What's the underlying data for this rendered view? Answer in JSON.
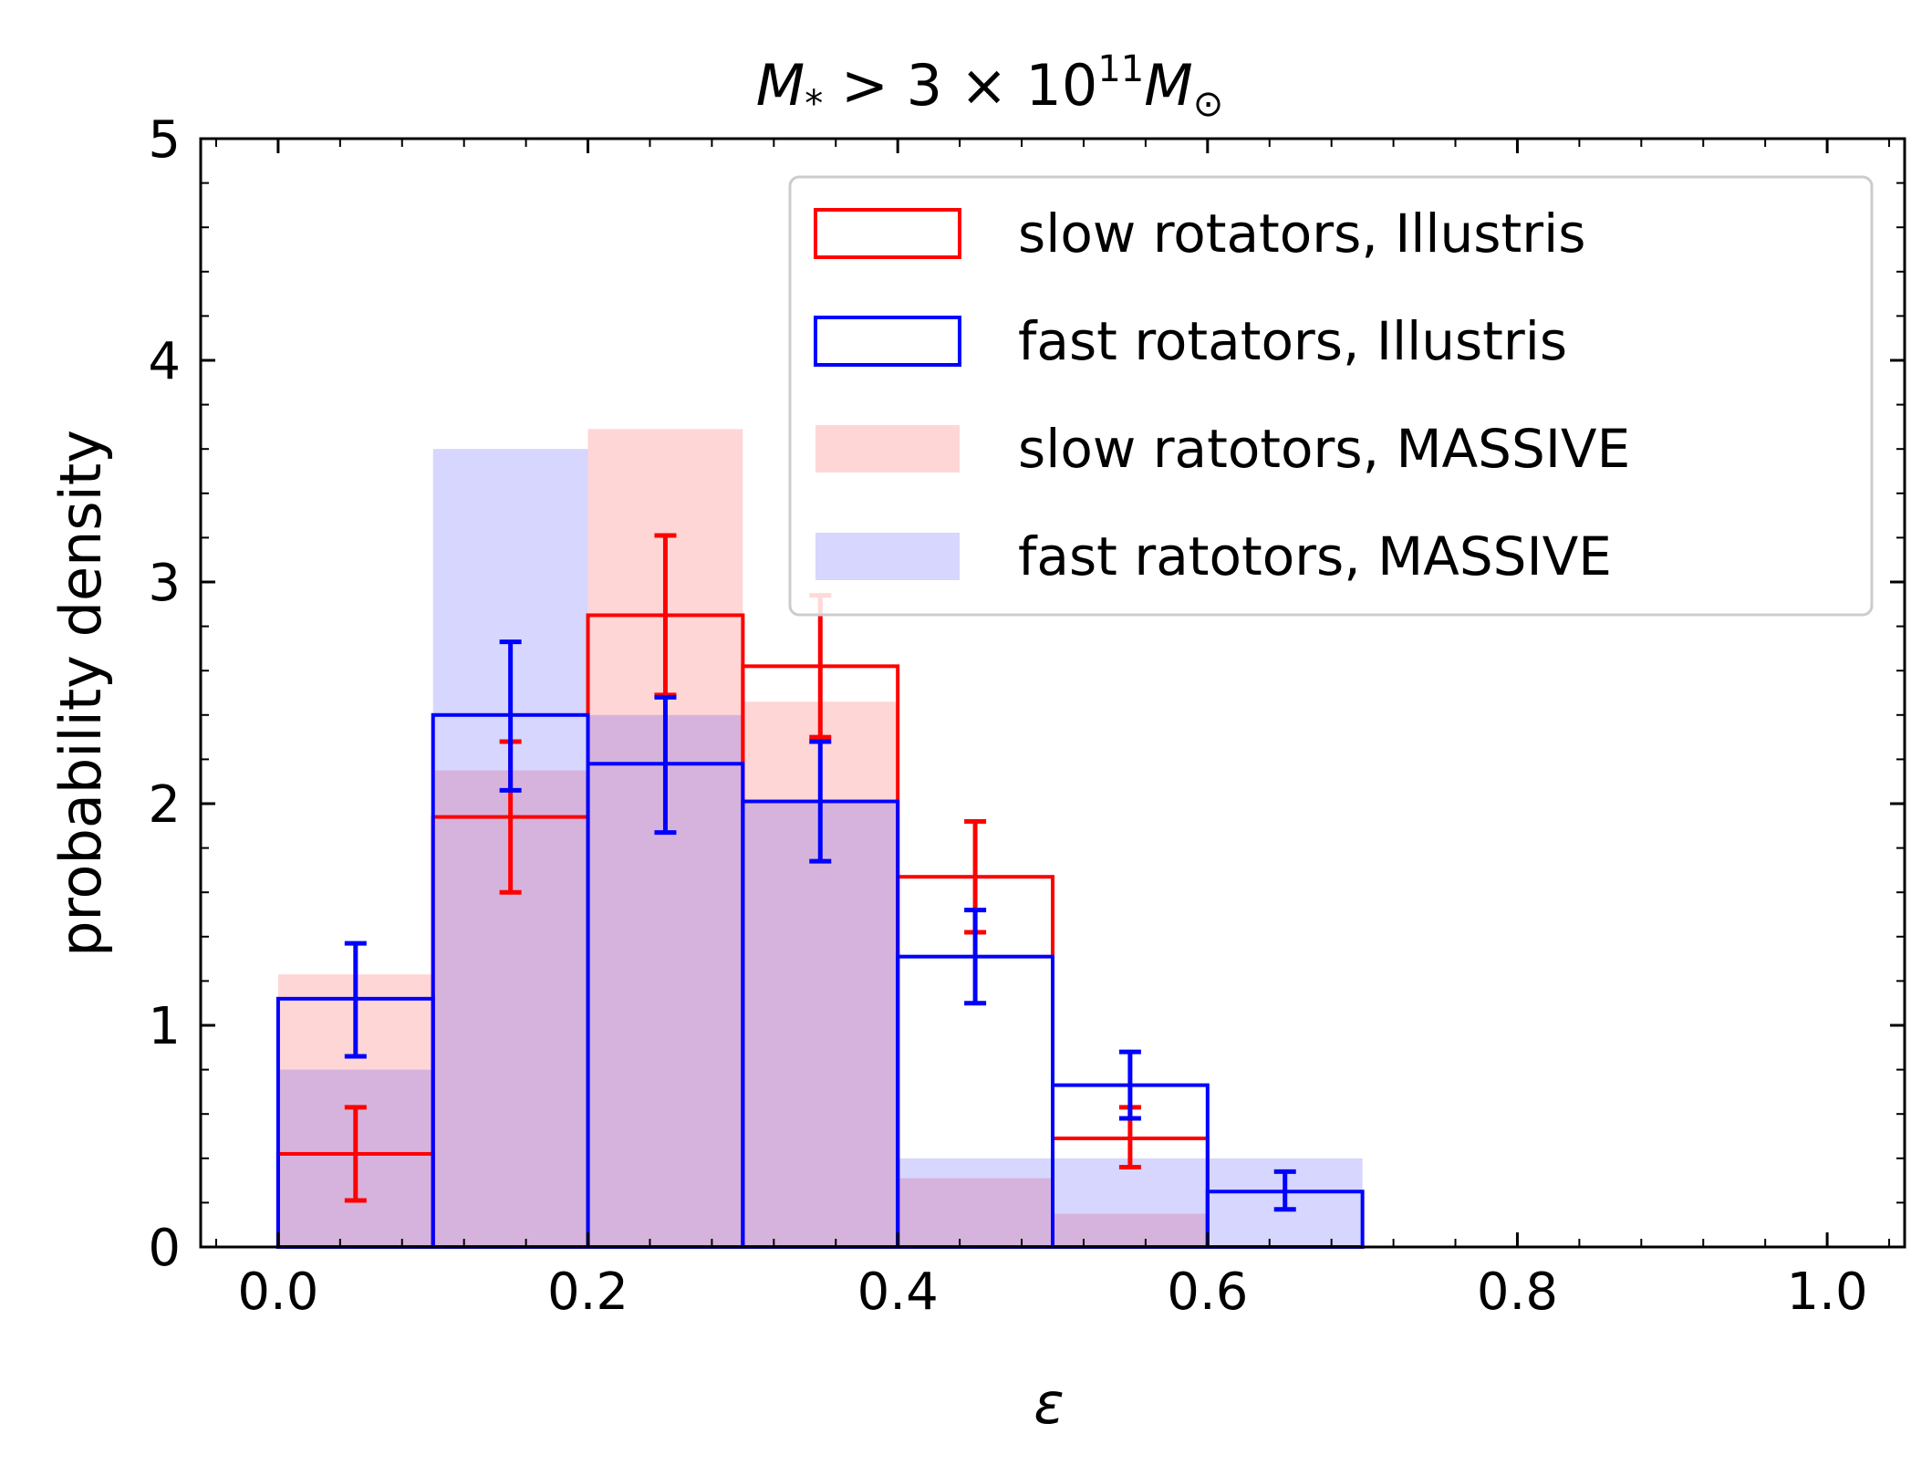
{
  "chart_data": {
    "type": "histogram",
    "title": {
      "prefix": "M",
      "sub": "*",
      "mid": " > 3 × 10",
      "sup": "11",
      "suffix": "M",
      "sub2": "⊙"
    },
    "xlabel": "ε",
    "ylabel": "probability density",
    "xlim": [
      -0.05,
      1.05
    ],
    "ylim": [
      0,
      5
    ],
    "xticks": [
      0.0,
      0.2,
      0.4,
      0.6,
      0.8,
      1.0
    ],
    "xtick_labels": [
      "0.0",
      "0.2",
      "0.4",
      "0.6",
      "0.8",
      "1.0"
    ],
    "yticks": [
      0,
      1,
      2,
      3,
      4,
      5
    ],
    "ytick_labels": [
      "0",
      "1",
      "2",
      "3",
      "4",
      "5"
    ],
    "bin_edges": [
      0.0,
      0.1,
      0.2,
      0.3,
      0.4,
      0.5,
      0.6,
      0.7
    ],
    "legend_position": "top-right",
    "series": [
      {
        "name": "slow rotators, Illustris",
        "style": "step",
        "color": "#ff0000",
        "values": [
          0.42,
          1.94,
          2.85,
          2.62,
          1.67,
          0.49,
          0
        ],
        "err_low": [
          0.21,
          1.6,
          2.49,
          2.3,
          1.42,
          0.36,
          null
        ],
        "err_high": [
          0.63,
          2.28,
          3.21,
          2.94,
          1.92,
          0.63,
          null
        ]
      },
      {
        "name": "fast rotators, Illustris",
        "style": "step",
        "color": "#0000ff",
        "values": [
          1.12,
          2.4,
          2.18,
          2.01,
          1.31,
          0.73,
          0.25
        ],
        "err_low": [
          0.86,
          2.06,
          1.87,
          1.74,
          1.1,
          0.58,
          0.17
        ],
        "err_high": [
          1.37,
          2.73,
          2.48,
          2.28,
          1.52,
          0.88,
          0.34
        ]
      },
      {
        "name": "slow ratotors, MASSIVE",
        "style": "filled",
        "color": "#ff0000",
        "opacity": 0.16,
        "values": [
          1.23,
          2.15,
          3.69,
          2.46,
          0.31,
          0.15,
          0
        ]
      },
      {
        "name": "fast ratotors, MASSIVE",
        "style": "filled",
        "color": "#0000ff",
        "opacity": 0.16,
        "values": [
          0.8,
          3.6,
          2.4,
          2.0,
          0.4,
          0.4,
          0.4
        ]
      }
    ]
  }
}
